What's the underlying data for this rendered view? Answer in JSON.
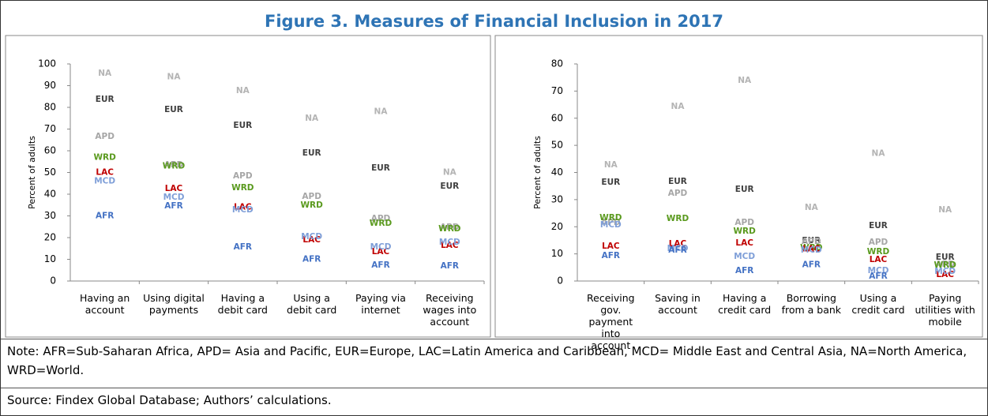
{
  "title": "Figure 3. Measures of Financial Inclusion in 2017",
  "note": "Note: AFR=Sub-Saharan Africa, APD= Asia and Pacific, EUR=Europe, LAC=Latin America and Caribbean, MCD= Middle East and Central Asia,  NA=North America, WRD=World.",
  "source": "Source: Findex Global Database;  Authors’ calculations.",
  "chart_data": [
    {
      "type": "scatter",
      "y_label": "Percent of adults",
      "categories": [
        "Having an account",
        "Using digital payments",
        "Having a debit card",
        "Using a debit card",
        "Paying via internet",
        "Receiving wages into account"
      ],
      "ylim": [
        0,
        100
      ],
      "yticks": [
        0,
        10,
        20,
        30,
        40,
        50,
        60,
        70,
        80,
        90,
        100
      ],
      "series": [
        {
          "name": "NA",
          "color": "#b4b4b4",
          "values": [
            95.6,
            94,
            87.6,
            75,
            78,
            50
          ]
        },
        {
          "name": "EUR",
          "color": "#404040",
          "values": [
            83.6,
            79,
            71.6,
            59,
            52,
            43.6
          ]
        },
        {
          "name": "APD",
          "color": "#a6a6a6",
          "values": [
            66.5,
            53.5,
            48.4,
            39,
            28.7,
            24.7
          ]
        },
        {
          "name": "WRD",
          "color": "#5a9a1e",
          "values": [
            57,
            53,
            43,
            35,
            26.5,
            24
          ]
        },
        {
          "name": "LAC",
          "color": "#c00000",
          "values": [
            50,
            42.5,
            34,
            19,
            13.5,
            16.4
          ]
        },
        {
          "name": "MCD",
          "color": "#7f9fd8",
          "values": [
            46,
            38.5,
            32.7,
            20.4,
            15.6,
            17.8
          ]
        },
        {
          "name": "AFR",
          "color": "#4472c4",
          "values": [
            30,
            34.5,
            15.6,
            10,
            7.3,
            7
          ]
        }
      ]
    },
    {
      "type": "scatter",
      "y_label": "Percent of adults",
      "categories": [
        "Receiving gov. payment into account",
        "Saving in account",
        "Having a credit card",
        "Borrowing from a bank",
        "Using a credit card",
        "Paying utilities with mobile"
      ],
      "ylim": [
        0,
        80
      ],
      "yticks": [
        0,
        10,
        20,
        30,
        40,
        50,
        60,
        70,
        80
      ],
      "series": [
        {
          "name": "NA",
          "color": "#b4b4b4",
          "values": [
            42.8,
            64.3,
            73.9,
            27,
            47,
            26.2
          ]
        },
        {
          "name": "EUR",
          "color": "#404040",
          "values": [
            36.4,
            36.7,
            33.7,
            14.8,
            20.4,
            8.7
          ]
        },
        {
          "name": "APD",
          "color": "#a6a6a6",
          "values": [
            21.5,
            32.3,
            21.5,
            14.5,
            14.3,
            6.1
          ]
        },
        {
          "name": "WRD",
          "color": "#5a9a1e",
          "values": [
            23.3,
            23,
            18.3,
            12.2,
            10.8,
            5.8
          ]
        },
        {
          "name": "LAC",
          "color": "#c00000",
          "values": [
            12.8,
            13.7,
            14,
            11.8,
            7.9,
            2.3
          ]
        },
        {
          "name": "MCD",
          "color": "#7f9fd8",
          "values": [
            20.7,
            11.9,
            9,
            11.3,
            3.8,
            3.5
          ]
        },
        {
          "name": "AFR",
          "color": "#4472c4",
          "values": [
            9.3,
            11.3,
            3.8,
            6,
            1.7,
            null
          ]
        }
      ]
    }
  ]
}
